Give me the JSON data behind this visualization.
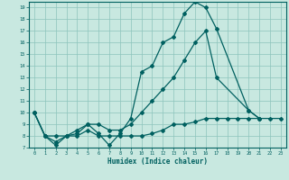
{
  "xlabel": "Humidex (Indice chaleur)",
  "bg_color": "#c8e8e0",
  "grid_color": "#8cc4bc",
  "line_color": "#006060",
  "xlim": [
    -0.5,
    23.5
  ],
  "ylim": [
    7,
    19.5
  ],
  "xticks": [
    0,
    1,
    2,
    3,
    4,
    5,
    6,
    7,
    8,
    9,
    10,
    11,
    12,
    13,
    14,
    15,
    16,
    17,
    18,
    19,
    20,
    21,
    22,
    23
  ],
  "yticks": [
    7,
    8,
    9,
    10,
    11,
    12,
    13,
    14,
    15,
    16,
    17,
    18,
    19
  ],
  "series1_x": [
    0,
    1,
    2,
    3,
    4,
    5,
    6,
    7,
    8,
    9,
    10,
    11,
    12,
    13,
    14,
    15,
    16,
    17,
    20,
    21
  ],
  "series1_y": [
    10,
    8,
    7.2,
    8,
    8.2,
    9,
    8.2,
    7.2,
    8.2,
    9.5,
    13.5,
    14,
    16,
    16.5,
    18.5,
    19.5,
    19,
    17.2,
    10.2,
    9.5
  ],
  "series2_x": [
    0,
    1,
    2,
    3,
    4,
    5,
    6,
    7,
    8,
    9,
    10,
    11,
    12,
    13,
    14,
    15,
    16,
    17,
    18,
    19,
    20,
    21,
    22,
    23
  ],
  "series2_y": [
    10,
    8,
    7.5,
    8,
    8,
    8.5,
    8,
    8,
    8,
    8,
    8,
    8.2,
    8.5,
    9,
    9,
    9.2,
    9.5,
    9.5,
    9.5,
    9.5,
    9.5,
    9.5,
    9.5,
    9.5
  ],
  "series3_x": [
    0,
    1,
    2,
    3,
    4,
    5,
    6,
    7,
    8,
    9,
    10,
    11,
    12,
    13,
    14,
    15,
    16,
    17,
    20,
    21
  ],
  "series3_y": [
    10,
    8,
    8,
    8,
    8.5,
    9,
    9,
    8.5,
    8.5,
    9,
    10,
    11,
    12,
    13,
    14.5,
    16,
    17,
    13,
    10.2,
    9.5
  ]
}
